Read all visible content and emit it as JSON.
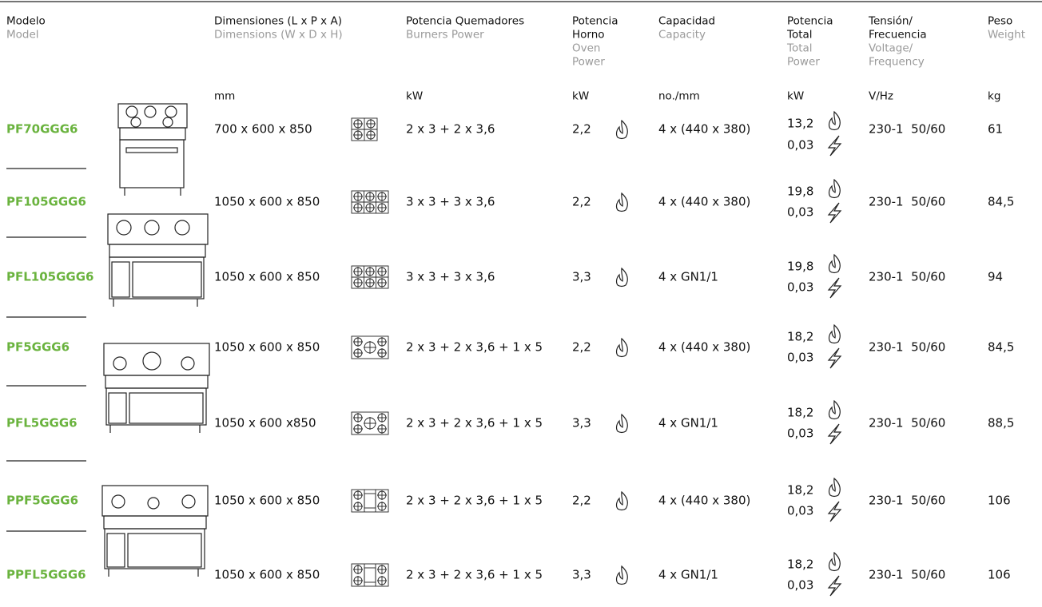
{
  "header": {
    "columns": [
      {
        "es": [
          "Modelo"
        ],
        "en": [
          "Model"
        ]
      },
      {
        "es": [
          "Dimensiones (L x P x A)"
        ],
        "en": [
          "Dimensions (W x D x H)"
        ]
      },
      {
        "es": [
          "Potencia Quemadores"
        ],
        "en": [
          "Burners Power"
        ]
      },
      {
        "es": [
          "Potencia",
          "Horno"
        ],
        "en": [
          "Oven",
          "Power"
        ]
      },
      {
        "es": [
          "Capacidad"
        ],
        "en": [
          "Capacity"
        ]
      },
      {
        "es": [
          "Potencia",
          "Total"
        ],
        "en": [
          "Total",
          "Power"
        ]
      },
      {
        "es": [
          "Tensión/",
          "Frecuencia"
        ],
        "en": [
          "Voltage/",
          "Frequency"
        ]
      },
      {
        "es": [
          "Peso"
        ],
        "en": [
          "Weight"
        ]
      }
    ],
    "units": [
      "mm",
      "kW",
      "kW",
      "no./mm",
      "kW",
      "V/Hz",
      "kg"
    ]
  },
  "table": {
    "rows": [
      {
        "model": "PF70GGG6",
        "dimensions": "700 x 600 x 850",
        "burners": "2 x 3 + 2 x 3,6",
        "oven": "2,2",
        "capacity": "4 x (440 x 380)",
        "total_gas": "13,2",
        "total_electric": "0,03",
        "voltage": "230-1  50/60",
        "weight": "61"
      },
      {
        "model": "PF105GGG6",
        "dimensions": "1050 x 600 x 850",
        "burners": "3 x 3 + 3 x 3,6",
        "oven": "2,2",
        "capacity": "4 x (440 x 380)",
        "total_gas": "19,8",
        "total_electric": "0,03",
        "voltage": "230-1  50/60",
        "weight": "84,5"
      },
      {
        "model": "PFL105GGG6",
        "dimensions": "1050 x 600 x 850",
        "burners": "3 x 3 + 3 x 3,6",
        "oven": "3,3",
        "capacity": "4 x GN1/1",
        "total_gas": "19,8",
        "total_electric": "0,03",
        "voltage": "230-1  50/60",
        "weight": "94"
      },
      {
        "model": "PF5GGG6",
        "dimensions": "1050 x 600 x 850",
        "burners": "2 x 3 + 2 x 3,6 + 1 x 5",
        "oven": "2,2",
        "capacity": "4 x (440 x 380)",
        "total_gas": "18,2",
        "total_electric": "0,03",
        "voltage": "230-1  50/60",
        "weight": "84,5"
      },
      {
        "model": "PFL5GGG6",
        "dimensions": "1050 x 600 x850",
        "burners": "2 x 3 + 2 x 3,6 + 1 x 5",
        "oven": "3,3",
        "capacity": "4 x GN1/1",
        "total_gas": "18,2",
        "total_electric": "0,03",
        "voltage": "230-1  50/60",
        "weight": "88,5"
      },
      {
        "model": "PPF5GGG6",
        "dimensions": "1050 x 600 x 850",
        "burners": "2 x 3 + 2 x 3,6 + 1 x 5",
        "oven": "2,2",
        "capacity": "4 x (440 x 380)",
        "total_gas": "18,2",
        "total_electric": "0,03",
        "voltage": "230-1  50/60",
        "weight": "106"
      },
      {
        "model": "PPFL5GGG6",
        "dimensions": "1050 x 600 x 850",
        "burners": "2 x 3 + 2 x 3,6 + 1 x 5",
        "oven": "3,3",
        "capacity": "4 x GN1/1",
        "total_gas": "18,2",
        "total_electric": "0,03",
        "voltage": "230-1  50/60",
        "weight": "106"
      }
    ]
  }
}
